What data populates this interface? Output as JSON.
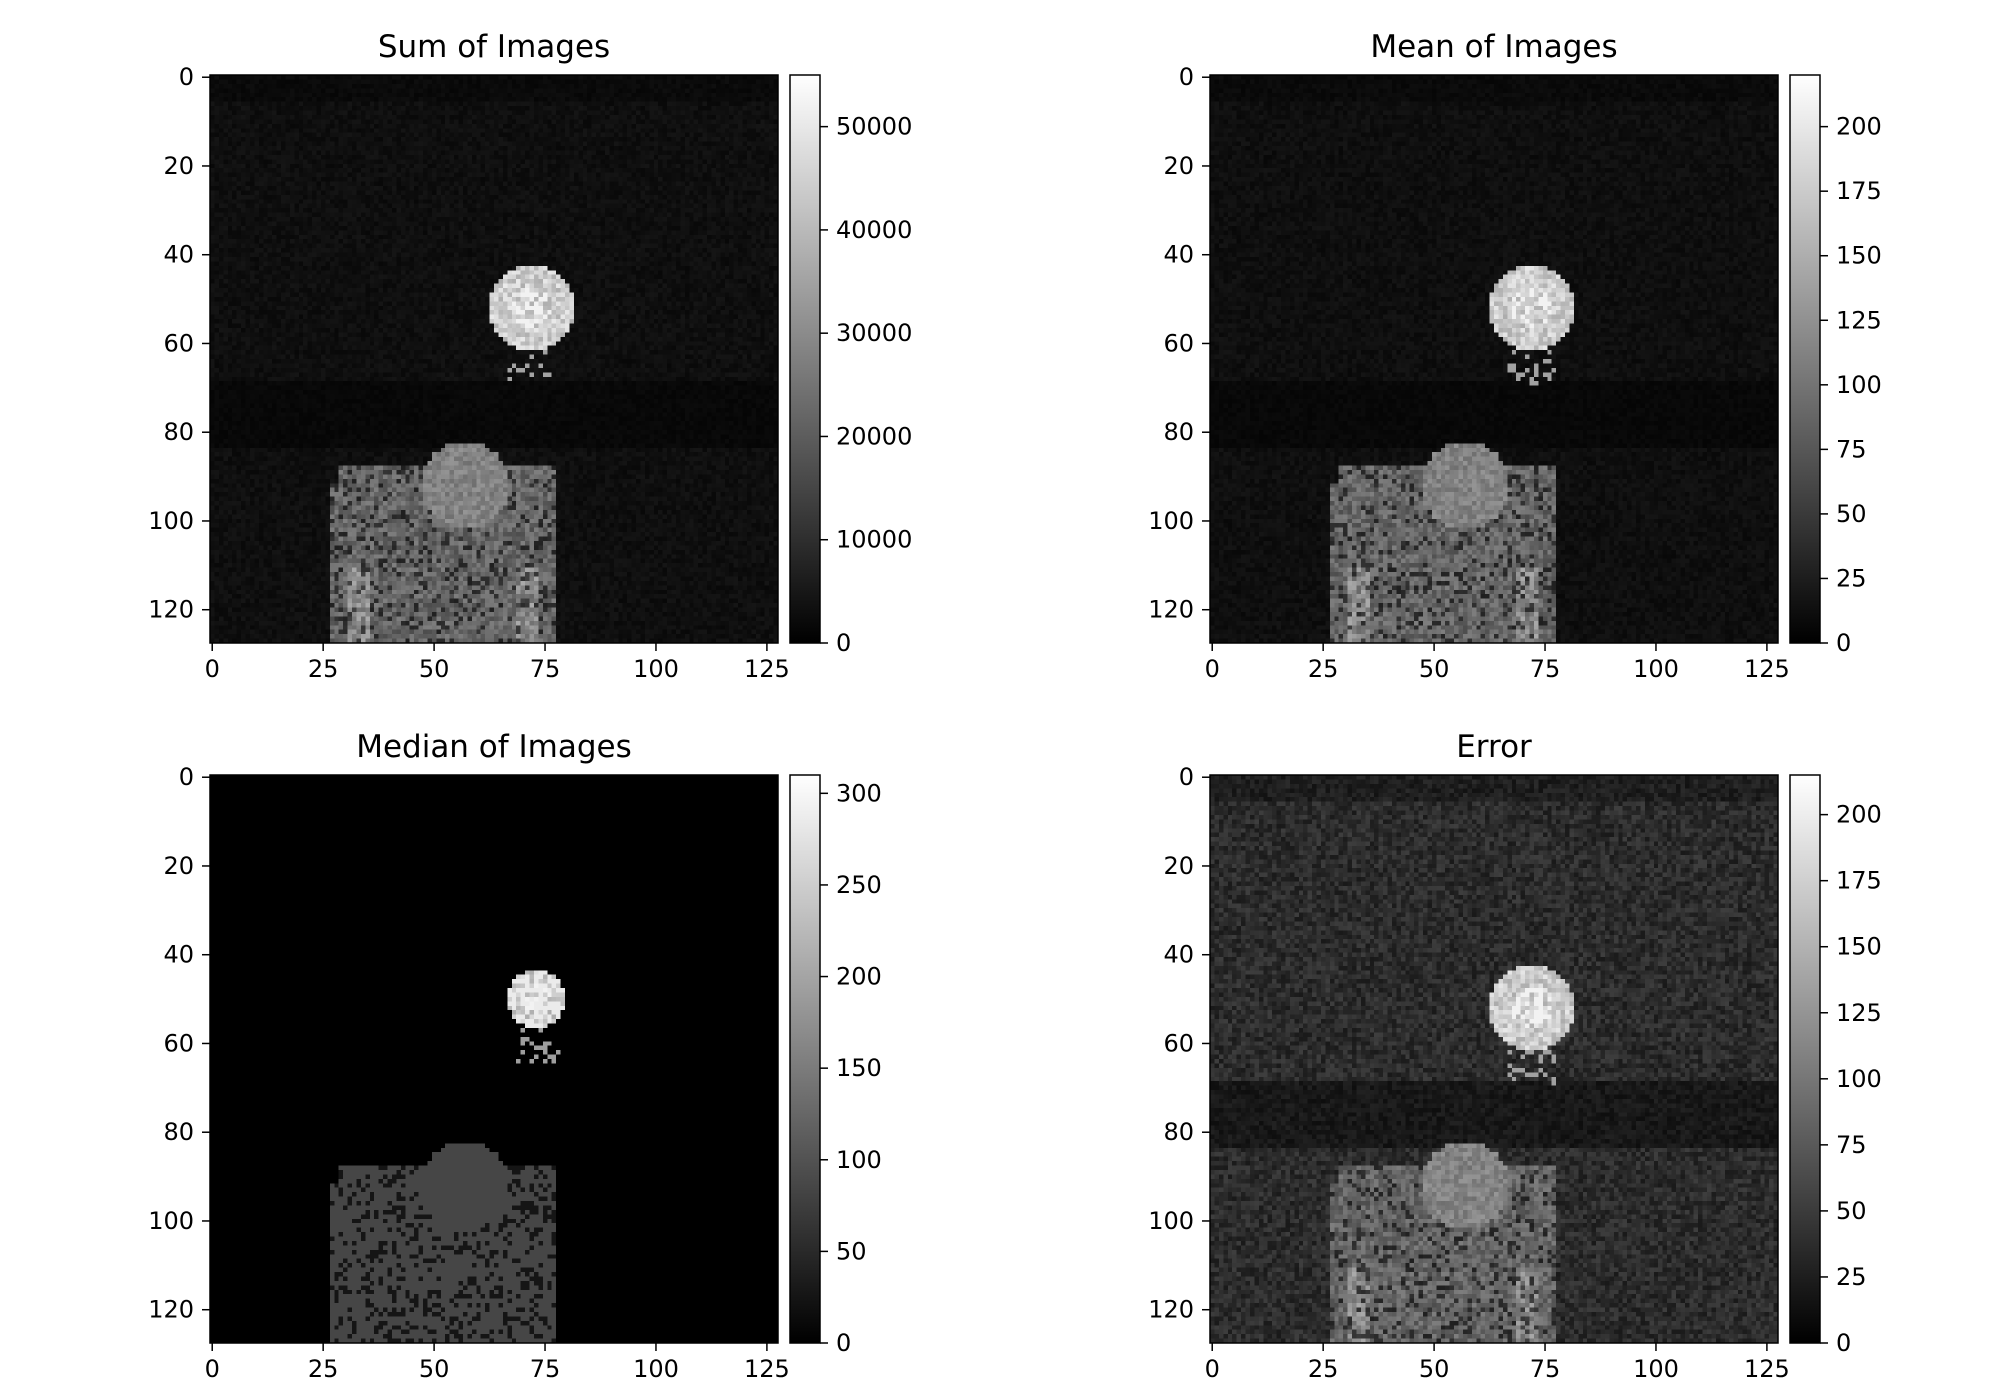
{
  "chart_data": [
    {
      "type": "heatmap",
      "title": "Sum of Images",
      "colormap": "gray",
      "xlim": [
        0,
        127
      ],
      "ylim": [
        127,
        0
      ],
      "x_ticks": [
        0,
        25,
        50,
        75,
        100,
        125
      ],
      "y_ticks": [
        0,
        20,
        40,
        60,
        80,
        100,
        120
      ],
      "colorbar": {
        "min": 0,
        "max": 55000,
        "ticks": [
          0,
          10000,
          20000,
          30000,
          40000,
          50000
        ]
      },
      "features": {
        "background": 3000,
        "upper_blob": {
          "center": [
            72,
            52
          ],
          "radius": 9.5,
          "value": 44000
        },
        "lower_region_value": 22000,
        "lower_dome_value": 28000
      }
    },
    {
      "type": "heatmap",
      "title": "Mean of Images",
      "colormap": "gray",
      "xlim": [
        0,
        127
      ],
      "ylim": [
        127,
        0
      ],
      "x_ticks": [
        0,
        25,
        50,
        75,
        100,
        125
      ],
      "y_ticks": [
        0,
        20,
        40,
        60,
        80,
        100,
        120
      ],
      "colorbar": {
        "min": 0,
        "max": 220,
        "ticks": [
          0,
          25,
          50,
          75,
          100,
          125,
          150,
          175,
          200
        ]
      },
      "features": {
        "background": 12,
        "upper_blob": {
          "center": [
            72,
            52
          ],
          "radius": 9.5,
          "value": 175
        },
        "lower_region_value": 88,
        "lower_dome_value": 112
      }
    },
    {
      "type": "heatmap",
      "title": "Median of Images",
      "colormap": "gray",
      "xlim": [
        0,
        127
      ],
      "ylim": [
        127,
        0
      ],
      "x_ticks": [
        0,
        25,
        50,
        75,
        100,
        125
      ],
      "y_ticks": [
        0,
        20,
        40,
        60,
        80,
        100,
        120
      ],
      "colorbar": {
        "min": 0,
        "max": 310,
        "ticks": [
          0,
          50,
          100,
          150,
          200,
          250,
          300
        ]
      },
      "features": {
        "background": 0,
        "upper_blob": {
          "center": [
            73,
            50
          ],
          "radius": 6.5,
          "value": 240
        },
        "lower_region_value": 85,
        "lower_dome_value": 85
      }
    },
    {
      "type": "heatmap",
      "title": "Error",
      "colormap": "gray",
      "xlim": [
        0,
        127
      ],
      "ylim": [
        127,
        0
      ],
      "x_ticks": [
        0,
        25,
        50,
        75,
        100,
        125
      ],
      "y_ticks": [
        0,
        20,
        40,
        60,
        80,
        100,
        120
      ],
      "colorbar": {
        "min": 0,
        "max": 215,
        "ticks": [
          0,
          25,
          50,
          75,
          100,
          125,
          150,
          175,
          200
        ]
      },
      "features": {
        "background": 35,
        "upper_blob": {
          "center": [
            72,
            52
          ],
          "radius": 9.5,
          "value": 170
        },
        "lower_region_value": 85,
        "lower_dome_value": 110
      }
    }
  ]
}
